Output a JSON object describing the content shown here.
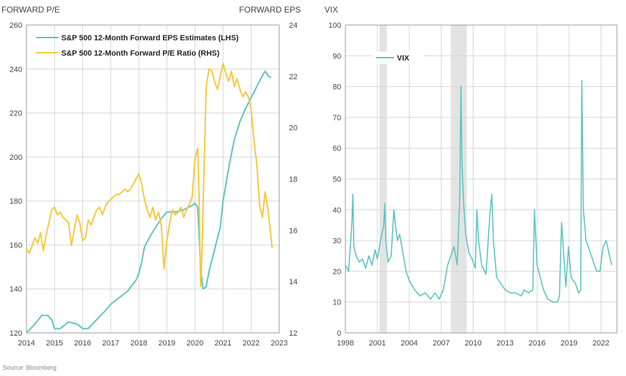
{
  "source": "Source: Bloomberg",
  "chart_data": [
    {
      "type": "line",
      "left_axis_title": "FORWARD P/E",
      "right_axis_title": "FORWARD EPS",
      "x_ticks": [
        "2014",
        "2015",
        "2016",
        "2017",
        "2018",
        "2019",
        "2020",
        "2021",
        "2022",
        "2023"
      ],
      "xlim": [
        2014,
        2023
      ],
      "left_ticks": [
        "260",
        "240",
        "220",
        "200",
        "180",
        "160",
        "140",
        "120"
      ],
      "ylim_left": [
        120,
        260
      ],
      "right_ticks": [
        "24",
        "22",
        "20",
        "18",
        "16",
        "14",
        "12"
      ],
      "ylim_right": [
        12,
        24
      ],
      "grid": true,
      "legend_position": "top-left",
      "series": [
        {
          "name": "S&P 500 12-Month Forward EPS Estimates (LHS)",
          "axis": "left",
          "color": "#5cc3c3",
          "x": [
            2014.0,
            2014.3,
            2014.55,
            2014.75,
            2014.9,
            2015.0,
            2015.2,
            2015.5,
            2015.8,
            2016.0,
            2016.2,
            2016.5,
            2016.8,
            2017.0,
            2017.3,
            2017.6,
            2017.9,
            2018.0,
            2018.1,
            2018.2,
            2018.4,
            2018.6,
            2018.8,
            2019.0,
            2019.3,
            2019.6,
            2019.9,
            2020.0,
            2020.1,
            2020.2,
            2020.28,
            2020.4,
            2020.5,
            2020.7,
            2020.9,
            2021.0,
            2021.2,
            2021.4,
            2021.6,
            2021.8,
            2022.0,
            2022.2,
            2022.4,
            2022.5,
            2022.6,
            2022.7
          ],
          "y": [
            120,
            124,
            128,
            128,
            126,
            122,
            122,
            125,
            124,
            122,
            122,
            126,
            130,
            133,
            136,
            139,
            144,
            147,
            152,
            159,
            164,
            168,
            172,
            175,
            175,
            176,
            178,
            179,
            177,
            150,
            140,
            141,
            148,
            158,
            168,
            180,
            195,
            208,
            216,
            222,
            227,
            232,
            237,
            239,
            237,
            236
          ]
        },
        {
          "name": "S&P 500 12-Month Forward P/E Ratio (RHS)",
          "axis": "right",
          "color": "#f6c83c",
          "x": [
            2014.0,
            2014.1,
            2014.2,
            2014.3,
            2014.4,
            2014.5,
            2014.6,
            2014.7,
            2014.8,
            2014.9,
            2015.0,
            2015.1,
            2015.2,
            2015.3,
            2015.4,
            2015.5,
            2015.6,
            2015.7,
            2015.8,
            2015.9,
            2016.0,
            2016.1,
            2016.2,
            2016.3,
            2016.4,
            2016.5,
            2016.6,
            2016.7,
            2016.8,
            2016.9,
            2017.0,
            2017.1,
            2017.2,
            2017.3,
            2017.4,
            2017.5,
            2017.6,
            2017.7,
            2017.8,
            2017.9,
            2018.0,
            2018.1,
            2018.2,
            2018.3,
            2018.4,
            2018.5,
            2018.6,
            2018.7,
            2018.8,
            2018.9,
            2019.0,
            2019.1,
            2019.2,
            2019.3,
            2019.4,
            2019.5,
            2019.6,
            2019.7,
            2019.8,
            2019.9,
            2020.0,
            2020.1,
            2020.15,
            2020.2,
            2020.25,
            2020.3,
            2020.35,
            2020.4,
            2020.5,
            2020.6,
            2020.7,
            2020.8,
            2020.9,
            2021.0,
            2021.1,
            2021.2,
            2021.3,
            2021.4,
            2021.5,
            2021.6,
            2021.7,
            2021.8,
            2021.9,
            2022.0,
            2022.1,
            2022.2,
            2022.3,
            2022.4,
            2022.5,
            2022.6,
            2022.7,
            2022.75
          ],
          "y": [
            15.3,
            15.1,
            15.4,
            15.7,
            15.5,
            15.9,
            15.2,
            15.8,
            16.3,
            16.8,
            16.9,
            16.6,
            16.7,
            16.5,
            16.4,
            16.3,
            15.4,
            16.0,
            16.6,
            16.3,
            15.6,
            15.7,
            16.4,
            16.2,
            16.5,
            16.8,
            16.9,
            16.6,
            16.9,
            17.1,
            17.2,
            17.3,
            17.4,
            17.4,
            17.5,
            17.6,
            17.5,
            17.6,
            17.8,
            18.0,
            18.2,
            17.8,
            17.2,
            16.8,
            16.5,
            16.9,
            16.4,
            16.7,
            16.2,
            14.5,
            15.6,
            16.3,
            16.8,
            16.6,
            16.7,
            16.9,
            16.5,
            16.8,
            17.0,
            17.3,
            18.8,
            19.2,
            17.1,
            13.8,
            15.2,
            17.4,
            19.5,
            21.6,
            22.3,
            22.2,
            21.8,
            21.5,
            22.0,
            22.5,
            22.1,
            21.8,
            22.2,
            21.6,
            21.9,
            21.5,
            21.2,
            21.4,
            21.2,
            20.7,
            19.5,
            18.6,
            17.0,
            16.5,
            17.5,
            16.8,
            15.8,
            15.3
          ]
        }
      ]
    },
    {
      "type": "line",
      "left_axis_title": "VIX",
      "x_ticks": [
        "1998",
        "2001",
        "2004",
        "2007",
        "2010",
        "2013",
        "2016",
        "2019",
        "2022"
      ],
      "xlim": [
        1998,
        2023.5
      ],
      "y_ticks": [
        "100",
        "90",
        "80",
        "70",
        "60",
        "50",
        "40",
        "30",
        "20",
        "10",
        "0"
      ],
      "ylim": [
        0,
        100
      ],
      "grid": true,
      "legend_position": "top-left",
      "shaded_periods": [
        [
          2001.2,
          2001.9
        ],
        [
          2007.9,
          2009.4
        ]
      ],
      "series": [
        {
          "name": "VIX",
          "color": "#5cc3c3",
          "x": [
            1998.0,
            1998.3,
            1998.6,
            1998.7,
            1998.8,
            1999.0,
            1999.3,
            1999.6,
            1999.9,
            2000.2,
            2000.5,
            2000.8,
            2001.0,
            2001.3,
            2001.6,
            2001.7,
            2001.8,
            2002.0,
            2002.3,
            2002.55,
            2002.7,
            2002.9,
            2003.1,
            2003.4,
            2003.7,
            2004.0,
            2004.5,
            2005.0,
            2005.5,
            2006.0,
            2006.4,
            2006.8,
            2007.2,
            2007.6,
            2007.9,
            2008.2,
            2008.5,
            2008.75,
            2008.85,
            2008.95,
            2009.1,
            2009.3,
            2009.6,
            2009.9,
            2010.2,
            2010.35,
            2010.5,
            2010.8,
            2011.2,
            2011.6,
            2011.75,
            2011.9,
            2012.2,
            2012.6,
            2013.0,
            2013.5,
            2014.0,
            2014.5,
            2014.8,
            2015.2,
            2015.6,
            2015.75,
            2016.0,
            2016.3,
            2016.6,
            2017.0,
            2017.5,
            2017.9,
            2018.1,
            2018.3,
            2018.7,
            2018.95,
            2019.2,
            2019.6,
            2019.9,
            2020.1,
            2020.2,
            2020.35,
            2020.6,
            2020.9,
            2021.2,
            2021.6,
            2021.9,
            2022.2,
            2022.5,
            2022.8,
            2023.0
          ],
          "y": [
            22,
            20,
            35,
            45,
            28,
            25,
            23,
            24,
            21,
            25,
            22,
            27,
            24,
            30,
            35,
            42,
            30,
            23,
            25,
            40,
            35,
            30,
            32,
            26,
            20,
            17,
            14,
            12,
            13,
            11,
            13,
            11,
            14,
            22,
            25,
            28,
            22,
            45,
            80,
            55,
            42,
            32,
            26,
            24,
            21,
            40,
            30,
            22,
            19,
            40,
            45,
            30,
            18,
            16,
            14,
            13,
            13,
            12,
            14,
            13,
            14,
            40,
            22,
            18,
            14,
            11,
            10,
            10,
            12,
            36,
            15,
            28,
            18,
            16,
            13,
            14,
            82,
            40,
            30,
            27,
            24,
            20,
            20,
            28,
            30,
            25,
            22
          ]
        }
      ]
    }
  ]
}
